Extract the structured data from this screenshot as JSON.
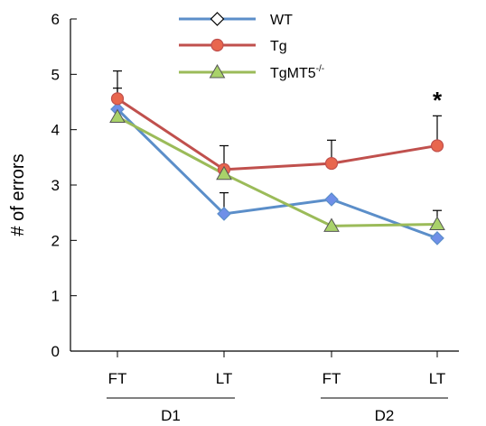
{
  "chart_data": {
    "type": "line",
    "categories": [
      "FT",
      "LT",
      "FT",
      "LT"
    ],
    "groups": [
      {
        "label": "D1",
        "categories": [
          0,
          1
        ]
      },
      {
        "label": "D2",
        "categories": [
          2,
          3
        ]
      }
    ],
    "ylabel": "# of errors",
    "ylim": [
      0,
      6
    ],
    "yticks": [
      "0",
      "1",
      "2",
      "3",
      "4",
      "5",
      "6"
    ],
    "grid": false,
    "legend_position": "top-center",
    "series": [
      {
        "name": "WT",
        "marker": "diamond",
        "color": "#5b8ec9",
        "marker_fill": "#6f8fe8",
        "values": [
          4.37,
          2.48,
          2.74,
          2.04
        ],
        "errors": [
          0.38,
          0.38,
          0.0,
          0.0
        ]
      },
      {
        "name": "Tg",
        "marker": "circle",
        "color": "#c0504d",
        "marker_fill": "#e8664e",
        "values": [
          4.56,
          3.28,
          3.39,
          3.71
        ],
        "errors": [
          0.5,
          0.43,
          0.42,
          0.54
        ]
      },
      {
        "name": "TgMT5",
        "name_superscript": "-/-",
        "marker": "triangle",
        "color": "#9bbb59",
        "marker_fill": "#a9d26a",
        "values": [
          4.23,
          3.2,
          2.26,
          2.29
        ],
        "errors": [
          0.0,
          0.0,
          0.0,
          0.25
        ]
      }
    ],
    "annotations": [
      {
        "text": "*",
        "category_index": 3
      }
    ]
  }
}
